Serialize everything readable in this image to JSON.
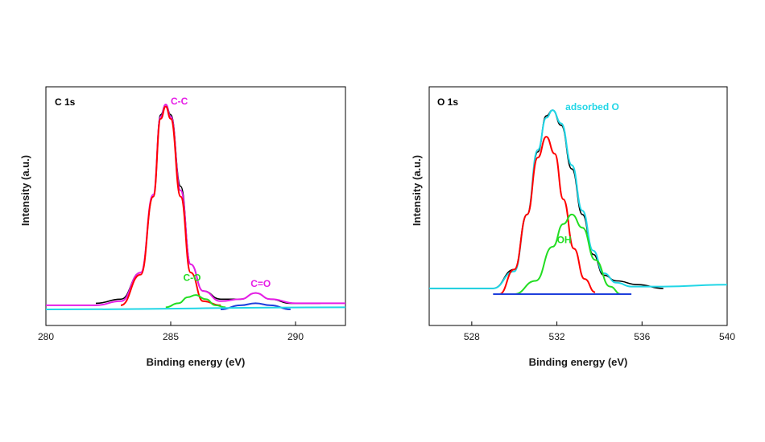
{
  "chart_data": [
    {
      "type": "line",
      "panel_label": "C 1s",
      "xlabel": "Binding energy (eV)",
      "ylabel": "Intensity (a.u.)",
      "xlim": [
        280,
        292
      ],
      "xticks": [
        280,
        285,
        290
      ],
      "ylim": [
        0,
        1.25
      ],
      "y_tick_labels": "none",
      "series": [
        {
          "key": "raw",
          "color": "#000000",
          "points": [
            [
              282.0,
              0.03
            ],
            [
              283.0,
              0.05
            ],
            [
              283.8,
              0.18
            ],
            [
              284.3,
              0.55
            ],
            [
              284.6,
              0.95
            ],
            [
              284.8,
              1.0
            ],
            [
              285.0,
              0.95
            ],
            [
              285.4,
              0.6
            ],
            [
              285.8,
              0.22
            ],
            [
              286.3,
              0.09
            ],
            [
              287.0,
              0.05
            ],
            [
              287.8,
              0.05
            ],
            [
              288.4,
              0.08
            ],
            [
              289.0,
              0.05
            ],
            [
              289.8,
              0.03
            ],
            [
              291.0,
              0.03
            ]
          ]
        },
        {
          "key": "envelope",
          "color": "#e61ee6",
          "points": [
            [
              280,
              0.02
            ],
            [
              282.0,
              0.02
            ],
            [
              283.0,
              0.04
            ],
            [
              283.8,
              0.18
            ],
            [
              284.3,
              0.56
            ],
            [
              284.6,
              0.94
            ],
            [
              284.8,
              1.0
            ],
            [
              285.0,
              0.94
            ],
            [
              285.4,
              0.58
            ],
            [
              285.8,
              0.22
            ],
            [
              286.3,
              0.09
            ],
            [
              287.0,
              0.04
            ],
            [
              287.8,
              0.05
            ],
            [
              288.4,
              0.08
            ],
            [
              289.0,
              0.05
            ],
            [
              290.0,
              0.03
            ],
            [
              292,
              0.03
            ]
          ]
        },
        {
          "key": "C-C",
          "color": "#ff0000",
          "points": [
            [
              283.0,
              0.02
            ],
            [
              283.8,
              0.17
            ],
            [
              284.3,
              0.55
            ],
            [
              284.6,
              0.93
            ],
            [
              284.8,
              0.99
            ],
            [
              285.0,
              0.93
            ],
            [
              285.4,
              0.55
            ],
            [
              285.8,
              0.18
            ],
            [
              286.3,
              0.04
            ],
            [
              287.0,
              0.02
            ]
          ]
        },
        {
          "key": "C-O",
          "color": "#22dd22",
          "points": [
            [
              284.8,
              0.01
            ],
            [
              285.3,
              0.03
            ],
            [
              285.7,
              0.06
            ],
            [
              286.0,
              0.07
            ],
            [
              286.4,
              0.05
            ],
            [
              286.8,
              0.02
            ],
            [
              287.2,
              0.01
            ]
          ]
        },
        {
          "key": "C=O",
          "color": "#1e3fdc",
          "points": [
            [
              287.0,
              0.0
            ],
            [
              287.8,
              0.02
            ],
            [
              288.4,
              0.03
            ],
            [
              289.0,
              0.02
            ],
            [
              289.8,
              0.0
            ]
          ]
        },
        {
          "key": "background",
          "color": "#21d6e6",
          "points": [
            [
              280,
              0.0
            ],
            [
              292,
              0.01
            ]
          ]
        }
      ],
      "annotations": [
        {
          "text": "C-C",
          "color": "#e61ee6",
          "x": 285.0,
          "y": 1.0
        },
        {
          "text": "C-O",
          "color": "#22dd22",
          "x": 285.5,
          "y": 0.14
        },
        {
          "text": "C=O",
          "color": "#e61ee6",
          "x": 288.2,
          "y": 0.11
        }
      ]
    },
    {
      "type": "line",
      "panel_label": "O 1s",
      "xlabel": "Binding energy (eV)",
      "ylabel": "Intensity (a.u.)",
      "xlim": [
        526,
        540
      ],
      "xticks": [
        528,
        532,
        536,
        540
      ],
      "ylim": [
        0,
        1.25
      ],
      "y_tick_labels": "none",
      "series": [
        {
          "key": "raw",
          "color": "#000000",
          "points": [
            [
              526.0,
              0.03
            ],
            [
              529.0,
              0.03
            ],
            [
              530.0,
              0.13
            ],
            [
              530.6,
              0.42
            ],
            [
              531.1,
              0.75
            ],
            [
              531.5,
              0.94
            ],
            [
              531.8,
              0.97
            ],
            [
              532.2,
              0.89
            ],
            [
              532.7,
              0.66
            ],
            [
              533.2,
              0.42
            ],
            [
              533.7,
              0.21
            ],
            [
              534.2,
              0.1
            ],
            [
              534.8,
              0.07
            ],
            [
              535.8,
              0.05
            ],
            [
              537.0,
              0.03
            ]
          ]
        },
        {
          "key": "envelope",
          "color": "#21d6e6",
          "points": [
            [
              526.0,
              0.03
            ],
            [
              528.0,
              0.03
            ],
            [
              529.0,
              0.03
            ],
            [
              530.0,
              0.12
            ],
            [
              530.6,
              0.42
            ],
            [
              531.1,
              0.76
            ],
            [
              531.5,
              0.93
            ],
            [
              531.8,
              0.97
            ],
            [
              532.2,
              0.9
            ],
            [
              532.7,
              0.68
            ],
            [
              533.2,
              0.44
            ],
            [
              533.7,
              0.23
            ],
            [
              534.2,
              0.11
            ],
            [
              534.8,
              0.06
            ],
            [
              535.5,
              0.04
            ],
            [
              537.0,
              0.04
            ],
            [
              540.0,
              0.05
            ]
          ]
        },
        {
          "key": "lattice",
          "color": "#ff0000",
          "points": [
            [
              529.3,
              0.0
            ],
            [
              530.0,
              0.13
            ],
            [
              530.6,
              0.42
            ],
            [
              531.1,
              0.72
            ],
            [
              531.5,
              0.83
            ],
            [
              531.9,
              0.74
            ],
            [
              532.3,
              0.5
            ],
            [
              532.8,
              0.24
            ],
            [
              533.3,
              0.08
            ],
            [
              533.8,
              0.01
            ]
          ]
        },
        {
          "key": "OH",
          "color": "#22dd22",
          "points": [
            [
              530.0,
              0.0
            ],
            [
              531.0,
              0.07
            ],
            [
              531.8,
              0.25
            ],
            [
              532.3,
              0.37
            ],
            [
              532.7,
              0.42
            ],
            [
              533.2,
              0.35
            ],
            [
              533.8,
              0.18
            ],
            [
              534.5,
              0.04
            ],
            [
              535.0,
              0.0
            ]
          ]
        },
        {
          "key": "adsorbed O",
          "color": "#1e3fdc",
          "points": [
            [
              529.5,
              0.0
            ],
            [
              531.0,
              0.0
            ],
            [
              533.0,
              0.0
            ],
            [
              535.0,
              0.0
            ]
          ]
        },
        {
          "key": "background",
          "color": "#1e3fdc",
          "points": [
            [
              529.0,
              0.0
            ],
            [
              535.5,
              0.0
            ]
          ]
        }
      ],
      "annotations": [
        {
          "text": "adsorbed O",
          "color": "#21d6e6",
          "x": 532.4,
          "y": 0.97
        },
        {
          "text": "OH",
          "color": "#22dd22",
          "x": 532.0,
          "y": 0.27
        }
      ]
    }
  ]
}
